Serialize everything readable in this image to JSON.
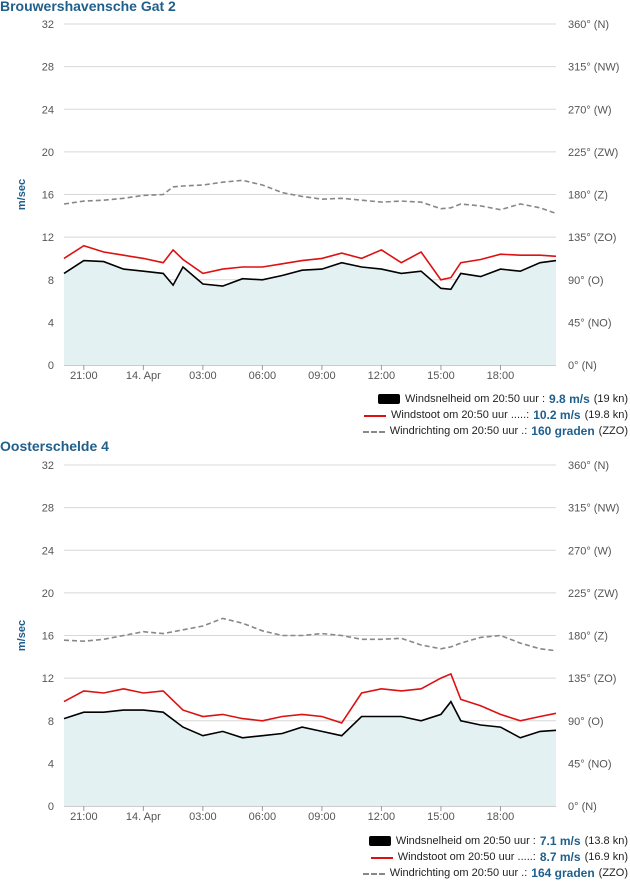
{
  "panels": [
    {
      "title": "Brouwershavensche Gat 2",
      "legend": [
        {
          "label": "Windsnelheid om 20:50 uur :",
          "value": "9.8 m/s",
          "extra": "(19 kn)"
        },
        {
          "label": "Windstoot om 20:50 uur .....:",
          "value": "10.2 m/s",
          "extra": "(19.8 kn)"
        },
        {
          "label": "Windrichting om 20:50 uur .:",
          "value": "160 graden",
          "extra": "(ZZO)"
        }
      ]
    },
    {
      "title": "Oosterschelde 4",
      "legend": [
        {
          "label": "Windsnelheid om 20:50 uur :",
          "value": "7.1 m/s",
          "extra": "(13.8 kn)"
        },
        {
          "label": "Windstoot om 20:50 uur .....:",
          "value": "8.7 m/s",
          "extra": "(16.9 kn)"
        },
        {
          "label": "Windrichting om 20:50 uur .:",
          "value": "164 graden",
          "extra": "(ZZO)"
        }
      ]
    }
  ],
  "chart_data": [
    {
      "type": "line",
      "title": "Brouwershavensche Gat 2",
      "ylabel": "m/sec",
      "ylim": [
        0,
        32
      ],
      "y_ticks": [
        "0",
        "4",
        "8",
        "12",
        "16",
        "20",
        "24",
        "28",
        "32"
      ],
      "y2_ticks": [
        "0° (N)",
        "45° (NO)",
        "90° (O)",
        "135° (ZO)",
        "180° (Z)",
        "225° (ZW)",
        "270° (W)",
        "315° (NW)",
        "360° (N)"
      ],
      "y2lim": [
        0,
        360
      ],
      "x_ticks": [
        "21:00",
        "14. Apr",
        "03:00",
        "06:00",
        "09:00",
        "12:00",
        "15:00",
        "18:00"
      ],
      "xlim_hours": [
        20,
        44.8
      ],
      "x_tick_hours": [
        21,
        24,
        27,
        30,
        33,
        36,
        39,
        42
      ],
      "grid": true,
      "series": [
        {
          "name": "Windsnelheid",
          "style": "area",
          "color": "#000000",
          "x": [
            20,
            21,
            22,
            23,
            24,
            25,
            25.5,
            26,
            27,
            28,
            29,
            30,
            31,
            32,
            33,
            34,
            35,
            36,
            37,
            38,
            39,
            39.5,
            40,
            41,
            42,
            43,
            44,
            44.8
          ],
          "y": [
            8.6,
            9.8,
            9.7,
            9.0,
            8.8,
            8.6,
            7.5,
            9.2,
            7.6,
            7.4,
            8.1,
            8.0,
            8.4,
            8.9,
            9.0,
            9.6,
            9.2,
            9.0,
            8.6,
            8.8,
            7.2,
            7.1,
            8.6,
            8.3,
            9.0,
            8.8,
            9.6,
            9.8
          ]
        },
        {
          "name": "Windstoot",
          "style": "line",
          "color": "#dd1111",
          "x": [
            20,
            21,
            22,
            23,
            24,
            25,
            25.5,
            26,
            27,
            28,
            29,
            30,
            31,
            32,
            33,
            34,
            35,
            36,
            37,
            38,
            39,
            39.5,
            40,
            41,
            42,
            43,
            44,
            44.8
          ],
          "y": [
            10.0,
            11.2,
            10.6,
            10.3,
            10.0,
            9.6,
            10.8,
            9.9,
            8.6,
            9.0,
            9.2,
            9.2,
            9.5,
            9.8,
            10.0,
            10.5,
            10.0,
            10.8,
            9.6,
            10.6,
            8.0,
            8.2,
            9.6,
            9.9,
            10.4,
            10.3,
            10.3,
            10.2
          ]
        },
        {
          "name": "Windrichting",
          "style": "dashed",
          "axis": "right",
          "color": "#888888",
          "x": [
            20,
            21,
            22,
            23,
            24,
            25,
            25.5,
            26,
            27,
            28,
            29,
            30,
            31,
            32,
            33,
            34,
            35,
            36,
            37,
            38,
            39,
            39.5,
            40,
            41,
            42,
            43,
            44,
            44.8
          ],
          "y": [
            170,
            173,
            174,
            176,
            179,
            180,
            188,
            189,
            190,
            193,
            195,
            190,
            182,
            178,
            175,
            176,
            174,
            172,
            173,
            172,
            165,
            166,
            170,
            168,
            164,
            170,
            166,
            160
          ]
        }
      ]
    },
    {
      "type": "line",
      "title": "Oosterschelde 4",
      "ylabel": "m/sec",
      "ylim": [
        0,
        32
      ],
      "y_ticks": [
        "0",
        "4",
        "8",
        "12",
        "16",
        "20",
        "24",
        "28",
        "32"
      ],
      "y2_ticks": [
        "0° (N)",
        "45° (NO)",
        "90° (O)",
        "135° (ZO)",
        "180° (Z)",
        "225° (ZW)",
        "270° (W)",
        "315° (NW)",
        "360° (N)"
      ],
      "y2lim": [
        0,
        360
      ],
      "x_ticks": [
        "21:00",
        "14. Apr",
        "03:00",
        "06:00",
        "09:00",
        "12:00",
        "15:00",
        "18:00"
      ],
      "xlim_hours": [
        20,
        44.8
      ],
      "x_tick_hours": [
        21,
        24,
        27,
        30,
        33,
        36,
        39,
        42
      ],
      "grid": true,
      "series": [
        {
          "name": "Windsnelheid",
          "style": "area",
          "color": "#000000",
          "x": [
            20,
            21,
            22,
            23,
            24,
            25,
            26,
            27,
            28,
            29,
            30,
            31,
            32,
            33,
            34,
            35,
            36,
            37,
            38,
            39,
            39.5,
            40,
            41,
            42,
            43,
            44,
            44.8
          ],
          "y": [
            8.2,
            8.8,
            8.8,
            9.0,
            9.0,
            8.8,
            7.4,
            6.6,
            7.0,
            6.4,
            6.6,
            6.8,
            7.4,
            7.0,
            6.6,
            8.4,
            8.4,
            8.4,
            8.0,
            8.6,
            9.8,
            8.0,
            7.6,
            7.4,
            6.4,
            7.0,
            7.1
          ]
        },
        {
          "name": "Windstoot",
          "style": "line",
          "color": "#dd1111",
          "x": [
            20,
            21,
            22,
            23,
            24,
            25,
            26,
            27,
            28,
            29,
            30,
            31,
            32,
            33,
            34,
            35,
            36,
            37,
            38,
            39,
            39.5,
            40,
            41,
            42,
            43,
            44,
            44.8
          ],
          "y": [
            9.8,
            10.8,
            10.6,
            11.0,
            10.6,
            10.8,
            9.0,
            8.4,
            8.6,
            8.2,
            8.0,
            8.4,
            8.6,
            8.4,
            7.8,
            10.6,
            11.0,
            10.8,
            11.0,
            12.0,
            12.4,
            10.0,
            9.4,
            8.6,
            8.0,
            8.4,
            8.7
          ]
        },
        {
          "name": "Windrichting",
          "style": "dashed",
          "axis": "right",
          "color": "#888888",
          "x": [
            20,
            21,
            22,
            23,
            24,
            25,
            26,
            27,
            28,
            29,
            30,
            31,
            32,
            33,
            34,
            35,
            36,
            37,
            38,
            39,
            39.5,
            40,
            41,
            42,
            43,
            44,
            44.8
          ],
          "y": [
            175,
            174,
            176,
            180,
            184,
            182,
            186,
            190,
            198,
            193,
            185,
            180,
            180,
            182,
            180,
            176,
            176,
            177,
            170,
            166,
            168,
            172,
            178,
            180,
            172,
            166,
            164
          ]
        }
      ]
    }
  ]
}
